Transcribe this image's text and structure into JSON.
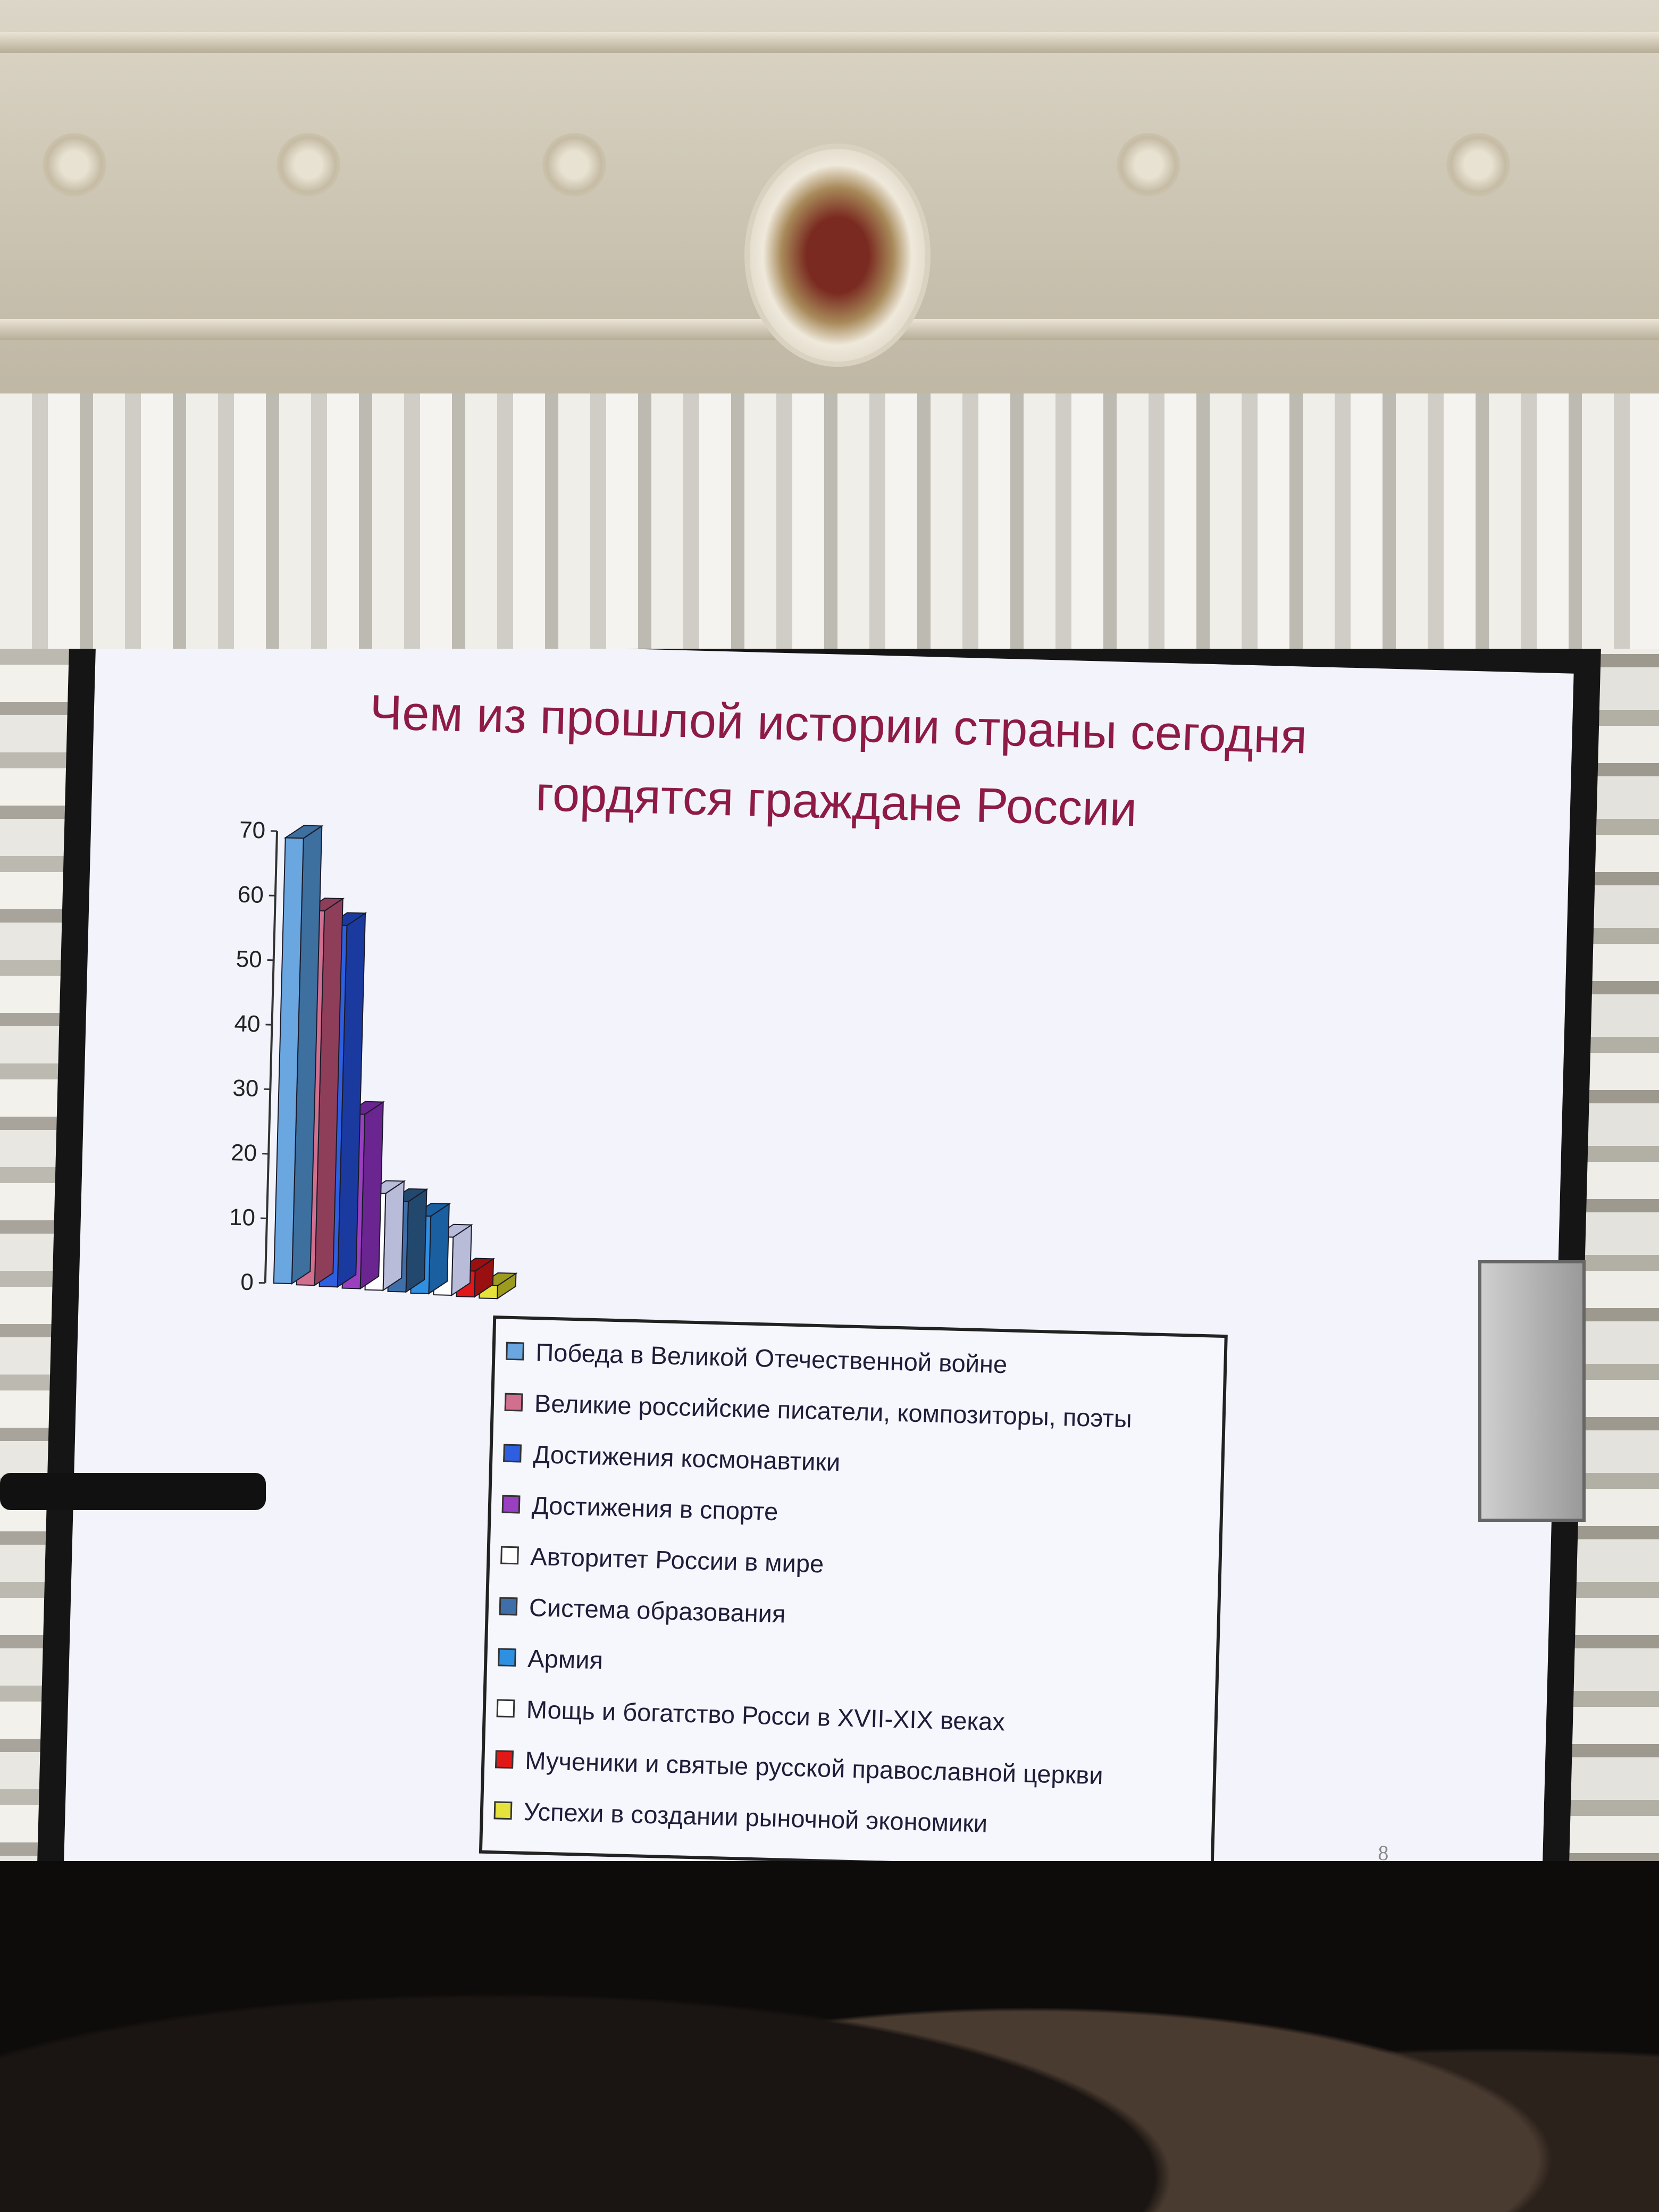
{
  "slide": {
    "title_line1": "Чем из прошлой истории страны сегодня",
    "title_line2": "гордятся граждане России",
    "page_number": "8"
  },
  "chart_data": {
    "type": "bar",
    "title": "Чем из прошлой истории страны сегодня гордятся граждане России",
    "xlabel": "",
    "ylabel": "",
    "ylim": [
      0,
      70
    ],
    "yticks": [
      "0",
      "10",
      "20",
      "30",
      "40",
      "50",
      "60",
      "70"
    ],
    "grid": false,
    "legend_placement": "bottom",
    "categories": [
      "Победа в Великой Отечественной войне",
      "Великие  российские писатели, композиторы, поэты",
      "Достижения космонавтики",
      "Достижения в спорте",
      "Авторитет России в мире",
      "Система образования",
      "Армия",
      "Мощь и богатство Росси в XVII-XIX веках",
      "Мученики и святые русской православной церкви",
      "Успехи в создании рыночной экономики"
    ],
    "values": [
      69,
      58,
      56,
      27,
      15,
      14,
      12,
      9,
      4,
      2
    ],
    "colors": [
      "#6aa6df",
      "#d16f8f",
      "#2d5fe0",
      "#9a3fbf",
      "#ffffff",
      "#3f6fa8",
      "#2f8fe0",
      "#ffffff",
      "#e01818",
      "#e6e23c"
    ],
    "side_colors": [
      "#3d6f9f",
      "#8f3e5a",
      "#1a3aa0",
      "#6a2590",
      "#b8bcd8",
      "#23486e",
      "#1a5f9f",
      "#b8bcd8",
      "#9a0f0f",
      "#9d9a20"
    ]
  }
}
